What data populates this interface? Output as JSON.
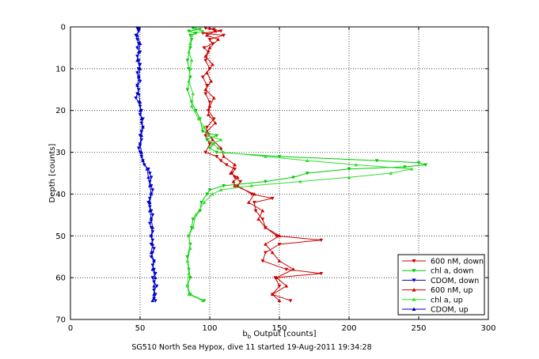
{
  "chart_data": {
    "type": "line",
    "title": "",
    "xlabel_main": "b",
    "xlabel_sub": "b",
    "xlabel_rest": " Output [counts]",
    "ylabel": "Depth [counts]",
    "caption": "SG510 North Sea Hypox, dive 11 started 19-Aug-2011 19:34:28",
    "xlim": [
      0,
      300
    ],
    "ylim": [
      0,
      70
    ],
    "y_reversed": true,
    "grid": true,
    "legend_position": "bottom-right",
    "xticks": [
      0,
      50,
      100,
      150,
      200,
      250,
      300
    ],
    "yticks": [
      0,
      10,
      20,
      30,
      40,
      50,
      60,
      70
    ],
    "series": [
      {
        "name": "600 nM, down",
        "color": "#cc0000",
        "marker": "down-triangle",
        "depth": [
          0.3,
          0.6,
          1,
          1.5,
          2,
          3,
          4,
          5,
          6,
          8,
          10,
          12,
          14,
          16,
          18,
          20,
          22,
          24,
          26,
          28,
          30,
          31,
          32,
          33,
          34,
          35,
          36,
          37,
          38,
          40,
          41,
          42,
          44,
          46,
          48,
          50,
          51,
          52,
          54,
          56,
          58,
          59,
          60,
          62,
          64,
          65.5
        ],
        "values": [
          97,
          103,
          108,
          95,
          110,
          100,
          102,
          96,
          99,
          97,
          100,
          95,
          98,
          97,
          100,
          99,
          103,
          98,
          97,
          100,
          97,
          105,
          108,
          112,
          118,
          116,
          118,
          122,
          120,
          130,
          145,
          132,
          133,
          138,
          140,
          148,
          180,
          150,
          140,
          138,
          155,
          180,
          147,
          150,
          145,
          158
        ]
      },
      {
        "name": "chl a, down",
        "color": "#00cc00",
        "marker": "down-triangle",
        "depth": [
          0.3,
          0.6,
          1,
          1.5,
          2,
          3,
          5,
          8,
          10,
          12,
          15,
          18,
          20,
          22,
          25,
          26,
          27,
          28,
          29,
          30,
          31,
          32,
          32.5,
          33,
          33.5,
          34,
          35,
          36,
          37,
          38,
          39,
          40,
          42,
          44,
          46,
          48,
          50,
          52,
          55,
          58,
          60,
          62,
          64,
          65.5
        ],
        "values": [
          88,
          93,
          85,
          90,
          86,
          87,
          86,
          84,
          85,
          86,
          84,
          87,
          90,
          93,
          95,
          105,
          98,
          103,
          100,
          105,
          150,
          220,
          250,
          255,
          240,
          200,
          170,
          160,
          140,
          110,
          100,
          98,
          94,
          93,
          88,
          87,
          85,
          86,
          84,
          85,
          86,
          84,
          86,
          96
        ]
      },
      {
        "name": "CDOM, down",
        "color": "#0000cc",
        "marker": "down-triangle",
        "depth": [
          0.3,
          1,
          2,
          3,
          4,
          5,
          6,
          7,
          8,
          9,
          10,
          11,
          12,
          13,
          14,
          15,
          16,
          17,
          18,
          19,
          20,
          21,
          22,
          23,
          24,
          25,
          26,
          27,
          28,
          29,
          30,
          31,
          32,
          33,
          34,
          35,
          36,
          37,
          38,
          39,
          40,
          41,
          42,
          43,
          44,
          45,
          46,
          47,
          48,
          49,
          50,
          51,
          52,
          53,
          54,
          55,
          56,
          57,
          58,
          59,
          60,
          61,
          62,
          63,
          64,
          65,
          65.5
        ],
        "values": [
          48,
          49,
          47,
          48,
          49,
          48,
          50,
          48,
          49,
          50,
          49,
          48,
          49,
          50,
          48,
          49,
          48,
          47,
          49,
          50,
          51,
          50,
          52,
          51,
          52,
          51,
          50,
          51,
          50,
          49,
          50,
          51,
          52,
          53,
          56,
          57,
          58,
          57,
          58,
          59,
          58,
          57,
          56,
          57,
          58,
          59,
          58,
          57,
          58,
          59,
          58,
          59,
          58,
          60,
          59,
          58,
          60,
          59,
          60,
          61,
          59,
          60,
          62,
          60,
          61,
          60,
          61
        ]
      },
      {
        "name": "600 nM, up",
        "color": "#cc0000",
        "marker": "up-triangle",
        "depth": [
          0.3,
          1,
          2,
          3,
          5,
          7,
          9,
          11,
          13,
          15,
          17,
          19,
          21,
          23,
          25,
          27,
          29,
          31,
          33,
          35,
          36,
          37,
          38,
          40,
          42,
          44,
          46,
          48,
          50,
          52,
          54,
          56,
          58,
          60,
          62,
          64,
          65.5
        ],
        "values": [
          100,
          104,
          98,
          106,
          100,
          97,
          102,
          98,
          101,
          97,
          103,
          100,
          99,
          104,
          98,
          102,
          108,
          110,
          118,
          115,
          120,
          117,
          118,
          132,
          128,
          138,
          135,
          140,
          150,
          140,
          145,
          150,
          160,
          148,
          155,
          145,
          150
        ]
      },
      {
        "name": "chl a, up",
        "color": "#33dd33",
        "marker": "up-triangle",
        "depth": [
          0.3,
          1,
          2,
          4,
          6,
          8,
          10,
          13,
          16,
          19,
          22,
          24,
          26,
          27,
          28,
          29,
          30,
          31,
          32,
          33,
          34,
          35,
          36,
          37,
          38,
          39,
          40,
          42,
          45,
          48,
          50,
          53,
          56,
          59,
          62,
          64,
          65.5
        ],
        "values": [
          90,
          95,
          87,
          86,
          85,
          87,
          86,
          85,
          88,
          87,
          92,
          96,
          99,
          108,
          102,
          106,
          110,
          140,
          170,
          205,
          245,
          230,
          200,
          165,
          130,
          108,
          102,
          96,
          90,
          88,
          85,
          86,
          84,
          85,
          84,
          85,
          95
        ]
      },
      {
        "name": "CDOM, up",
        "color": "#0000cc",
        "marker": "up-triangle",
        "depth": [
          0.3,
          2,
          4,
          6,
          8,
          10,
          12,
          14,
          16,
          18,
          20,
          22,
          24,
          26,
          28,
          30,
          32,
          34,
          36,
          38,
          40,
          42,
          44,
          46,
          48,
          50,
          52,
          54,
          56,
          58,
          60,
          62,
          64,
          65.5
        ],
        "values": [
          49,
          48,
          50,
          49,
          48,
          50,
          49,
          48,
          49,
          50,
          50,
          51,
          52,
          51,
          50,
          51,
          52,
          55,
          56,
          57,
          58,
          57,
          57,
          58,
          59,
          58,
          59,
          58,
          60,
          59,
          61,
          60,
          60,
          59
        ]
      }
    ]
  }
}
